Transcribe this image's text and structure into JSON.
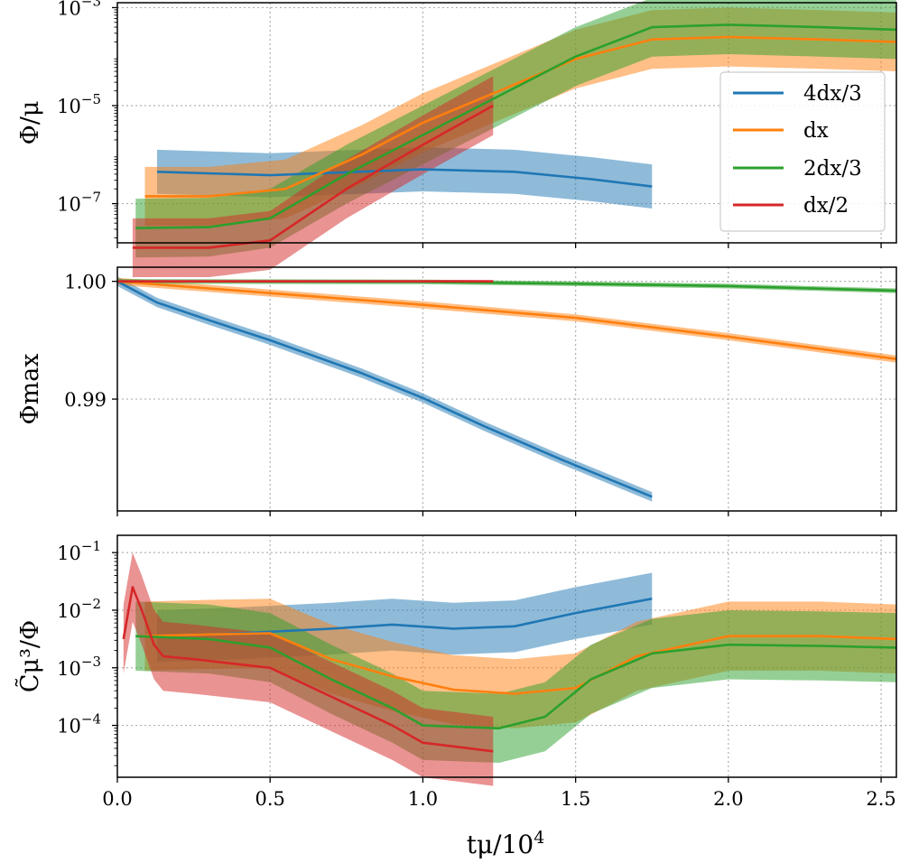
{
  "chart_data": [
    {
      "type": "line",
      "panel": "top",
      "title": "",
      "ylabel": "Φ/μ",
      "xlabel": "",
      "yscale": "log",
      "xlim": [
        0,
        2.55
      ],
      "ylim_log10": [
        -7.8,
        -2.9
      ],
      "yticks": [
        {
          "value": -3,
          "label": "10",
          "exp": "−3"
        },
        {
          "value": -5,
          "label": "10",
          "exp": "−5"
        },
        {
          "value": -7,
          "label": "10",
          "exp": "−7"
        }
      ],
      "legend_position": "right",
      "series": [
        {
          "name": "4dx/3",
          "legend_label": "4dx/3",
          "color": "#1f77b4",
          "x": [
            0.13,
            0.5,
            1.0,
            1.3,
            1.55,
            1.75
          ],
          "log10_y": [
            -6.35,
            -6.42,
            -6.3,
            -6.35,
            -6.5,
            -6.65
          ],
          "band_half_width": 0.45
        },
        {
          "name": "dx",
          "legend_label": "dx",
          "color": "#ff7f0e",
          "x": [
            0.09,
            0.3,
            0.55,
            0.8,
            1.0,
            1.25,
            1.5,
            1.75,
            2.0,
            2.3,
            2.55
          ],
          "log10_y": [
            -6.85,
            -6.85,
            -6.7,
            -6.0,
            -5.35,
            -4.7,
            -4.05,
            -3.65,
            -3.6,
            -3.65,
            -3.7
          ],
          "band_half_width": 0.6
        },
        {
          "name": "2dx/3",
          "legend_label": "2dx/3",
          "color": "#2ca02c",
          "x": [
            0.06,
            0.3,
            0.5,
            0.75,
            1.0,
            1.25,
            1.5,
            1.75,
            2.0,
            2.3,
            2.55
          ],
          "log10_y": [
            -7.5,
            -7.48,
            -7.3,
            -6.4,
            -5.6,
            -4.8,
            -4.0,
            -3.4,
            -3.35,
            -3.4,
            -3.45
          ],
          "band_half_width": 0.6
        },
        {
          "name": "dx/2",
          "legend_label": "dx/2",
          "color": "#d62728",
          "x": [
            0.05,
            0.3,
            0.5,
            0.75,
            1.0,
            1.23
          ],
          "log10_y": [
            -7.9,
            -7.9,
            -7.75,
            -6.7,
            -5.8,
            -5.0
          ],
          "band_half_width": 0.6
        }
      ]
    },
    {
      "type": "line",
      "panel": "middle",
      "title": "",
      "ylabel": "Φmax",
      "xlabel": "",
      "yscale": "linear",
      "xlim": [
        0,
        2.55
      ],
      "ylim": [
        0.9805,
        1.0012
      ],
      "yticks": [
        {
          "value": 1.0,
          "label": "1.00"
        },
        {
          "value": 0.99,
          "label": "0.99"
        }
      ],
      "series": [
        {
          "name": "4dx/3",
          "color": "#1f77b4",
          "x": [
            0.0,
            0.13,
            0.3,
            0.5,
            0.8,
            1.0,
            1.2,
            1.45,
            1.75
          ],
          "y": [
            1.0,
            0.9982,
            0.9967,
            0.995,
            0.9922,
            0.9901,
            0.9877,
            0.9849,
            0.9817
          ],
          "band_half_width": 0.0004
        },
        {
          "name": "dx",
          "color": "#ff7f0e",
          "x": [
            0.0,
            0.5,
            1.0,
            1.5,
            2.0,
            2.55
          ],
          "y": [
            1.0,
            0.999,
            0.998,
            0.9969,
            0.9953,
            0.9934
          ],
          "band_half_width": 0.0003
        },
        {
          "name": "2dx/3",
          "color": "#2ca02c",
          "x": [
            0.0,
            1.0,
            1.5,
            2.0,
            2.55
          ],
          "y": [
            1.0,
            0.99995,
            0.9998,
            0.9996,
            0.9992
          ],
          "band_half_width": 0.0002
        },
        {
          "name": "dx/2",
          "color": "#d62728",
          "x": [
            0.0,
            1.23
          ],
          "y": [
            1.0,
            1.0
          ],
          "band_half_width": 0.0001
        }
      ]
    },
    {
      "type": "line",
      "panel": "bottom",
      "title": "",
      "ylabel": "C̃μ³/Φ",
      "xlabel": "tμ/10",
      "xlabel_exp": "4",
      "yscale": "log",
      "xlim": [
        0,
        2.55
      ],
      "ylim_log10": [
        -4.9,
        -0.7
      ],
      "xticks": [
        {
          "value": 0.0,
          "label": "0.0"
        },
        {
          "value": 0.5,
          "label": "0.5"
        },
        {
          "value": 1.0,
          "label": "1.0"
        },
        {
          "value": 1.5,
          "label": "1.5"
        },
        {
          "value": 2.0,
          "label": "2.0"
        },
        {
          "value": 2.5,
          "label": "2.5"
        }
      ],
      "yticks": [
        {
          "value": -1,
          "label": "10",
          "exp": "−1"
        },
        {
          "value": -2,
          "label": "10",
          "exp": "−2"
        },
        {
          "value": -3,
          "label": "10",
          "exp": "−3"
        },
        {
          "value": -4,
          "label": "10",
          "exp": "−4"
        }
      ],
      "series": [
        {
          "name": "4dx/3",
          "color": "#1f77b4",
          "x": [
            0.13,
            0.4,
            0.7,
            0.9,
            1.1,
            1.3,
            1.5,
            1.75
          ],
          "log10_y": [
            -2.45,
            -2.4,
            -2.32,
            -2.25,
            -2.32,
            -2.28,
            -2.05,
            -1.8
          ],
          "band_half_width": 0.45
        },
        {
          "name": "dx",
          "color": "#ff7f0e",
          "x": [
            0.09,
            0.3,
            0.5,
            0.7,
            0.9,
            1.1,
            1.3,
            1.5,
            1.7,
            2.0,
            2.3,
            2.55
          ],
          "log10_y": [
            -2.45,
            -2.42,
            -2.4,
            -2.85,
            -3.15,
            -3.38,
            -3.45,
            -3.35,
            -2.8,
            -2.45,
            -2.45,
            -2.5
          ],
          "band_half_width": 0.6
        },
        {
          "name": "2dx/3",
          "color": "#2ca02c",
          "x": [
            0.06,
            0.3,
            0.5,
            0.7,
            0.9,
            1.0,
            1.25,
            1.4,
            1.55,
            1.75,
            2.0,
            2.3,
            2.55
          ],
          "log10_y": [
            -2.45,
            -2.5,
            -2.65,
            -3.2,
            -3.7,
            -4.0,
            -4.05,
            -3.85,
            -3.2,
            -2.75,
            -2.6,
            -2.62,
            -2.65
          ],
          "band_half_width": 0.6
        },
        {
          "name": "dx/2",
          "color": "#d62728",
          "x": [
            0.02,
            0.05,
            0.08,
            0.12,
            0.15,
            0.25,
            0.5,
            0.7,
            0.9,
            1.0,
            1.23
          ],
          "log10_y": [
            -2.5,
            -1.6,
            -2.0,
            -2.6,
            -2.8,
            -2.85,
            -3.0,
            -3.5,
            -4.0,
            -4.3,
            -4.45
          ],
          "band_half_width": 0.6
        }
      ]
    }
  ]
}
